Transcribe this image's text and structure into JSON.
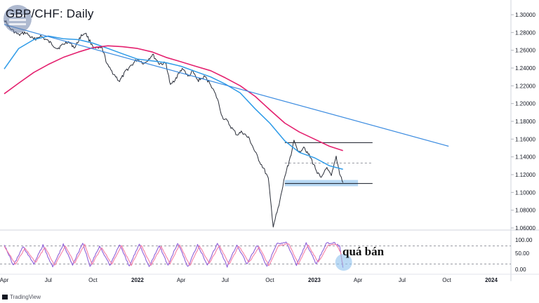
{
  "header": {
    "title": "GBP/CHF: Daily"
  },
  "annotation": {
    "oversold_label": "quá bán"
  },
  "brand": {
    "label": "TradingView"
  },
  "colors": {
    "price": "#2a2e39",
    "ma_fast": "#2e9be8",
    "ma_slow": "#e4216f",
    "trendline": "#3a8be0",
    "level": "#131722",
    "support_zone": "#9ecbf0",
    "stoch_k": "#8e5fd8",
    "stoch_d": "#f47fa7"
  },
  "chart_data": [
    {
      "type": "line",
      "title": "GBP/CHF: Daily",
      "x_ticks": [
        "Apr",
        "Jul",
        "Oct",
        "2022",
        "Apr",
        "Jul",
        "Oct",
        "2023",
        "Apr",
        "Jul",
        "Oct",
        "2024"
      ],
      "x_tick_dates": [
        "2021-04-01",
        "2021-07-01",
        "2021-10-01",
        "2022-01-01",
        "2022-04-01",
        "2022-07-01",
        "2022-10-01",
        "2023-01-01",
        "2023-04-01",
        "2023-07-01",
        "2023-10-01",
        "2024-01-01"
      ],
      "y_ticks": [
        "1.30000",
        "1.28000",
        "1.26000",
        "1.24000",
        "1.22000",
        "1.20000",
        "1.18000",
        "1.16000",
        "1.14000",
        "1.12000",
        "1.10000",
        "1.08000",
        "1.06000"
      ],
      "ylim": [
        1.06,
        1.3
      ],
      "grid": false,
      "series": [
        {
          "name": "",
          "style": "price",
          "dates": [
            "2021-04-01",
            "2021-04-12",
            "2021-05-01",
            "2021-05-15",
            "2021-06-01",
            "2021-06-15",
            "2021-07-01",
            "2021-07-20",
            "2021-08-10",
            "2021-08-25",
            "2021-09-05",
            "2021-09-15",
            "2021-09-25",
            "2021-10-05",
            "2021-10-20",
            "2021-11-01",
            "2021-11-15",
            "2021-11-25",
            "2021-12-10",
            "2022-01-01",
            "2022-01-15",
            "2022-02-01",
            "2022-02-15",
            "2022-03-01",
            "2022-03-10",
            "2022-03-25",
            "2022-04-05",
            "2022-04-15",
            "2022-04-25",
            "2022-05-05",
            "2022-05-20",
            "2022-06-01",
            "2022-06-15",
            "2022-06-25",
            "2022-07-05",
            "2022-07-15",
            "2022-07-25",
            "2022-08-05",
            "2022-08-20",
            "2022-09-01",
            "2022-09-10",
            "2022-09-20",
            "2022-09-28",
            "2022-10-08",
            "2022-10-20",
            "2022-11-01",
            "2022-11-10",
            "2022-11-20",
            "2022-12-01",
            "2022-12-10",
            "2022-12-25",
            "2023-01-05",
            "2023-01-15",
            "2023-01-25",
            "2023-02-05",
            "2023-02-15",
            "2023-02-22",
            "2023-03-01"
          ],
          "values": [
            1.295,
            1.285,
            1.277,
            1.28,
            1.272,
            1.276,
            1.27,
            1.262,
            1.27,
            1.263,
            1.275,
            1.28,
            1.27,
            1.262,
            1.262,
            1.242,
            1.232,
            1.225,
            1.238,
            1.25,
            1.245,
            1.255,
            1.245,
            1.245,
            1.22,
            1.232,
            1.24,
            1.23,
            1.236,
            1.226,
            1.23,
            1.222,
            1.205,
            1.185,
            1.18,
            1.172,
            1.165,
            1.168,
            1.16,
            1.145,
            1.135,
            1.125,
            1.115,
            1.062,
            1.085,
            1.118,
            1.135,
            1.157,
            1.145,
            1.152,
            1.138,
            1.125,
            1.115,
            1.128,
            1.118,
            1.14,
            1.122,
            1.111
          ]
        },
        {
          "name": "",
          "style": "ma_fast",
          "dates": [
            "2021-04-01",
            "2021-05-01",
            "2021-06-01",
            "2021-07-01",
            "2021-08-01",
            "2021-09-01",
            "2021-10-01",
            "2021-11-01",
            "2021-12-01",
            "2022-01-01",
            "2022-02-01",
            "2022-03-01",
            "2022-04-01",
            "2022-05-01",
            "2022-06-01",
            "2022-07-01",
            "2022-08-01",
            "2022-09-01",
            "2022-10-01",
            "2022-11-01",
            "2022-12-01",
            "2023-01-01",
            "2023-02-01",
            "2023-03-01"
          ],
          "values": [
            1.239,
            1.262,
            1.272,
            1.276,
            1.273,
            1.272,
            1.268,
            1.262,
            1.256,
            1.25,
            1.248,
            1.246,
            1.242,
            1.236,
            1.23,
            1.222,
            1.212,
            1.194,
            1.178,
            1.158,
            1.145,
            1.139,
            1.13,
            1.126
          ]
        },
        {
          "name": "",
          "style": "ma_slow",
          "dates": [
            "2021-04-01",
            "2021-05-01",
            "2021-06-01",
            "2021-07-01",
            "2021-08-01",
            "2021-09-01",
            "2021-10-01",
            "2021-11-01",
            "2021-12-01",
            "2022-01-01",
            "2022-02-01",
            "2022-03-01",
            "2022-04-01",
            "2022-05-01",
            "2022-06-01",
            "2022-07-01",
            "2022-08-01",
            "2022-09-01",
            "2022-10-01",
            "2022-11-01",
            "2022-12-01",
            "2023-01-01",
            "2023-02-01",
            "2023-03-01"
          ],
          "values": [
            1.211,
            1.223,
            1.235,
            1.244,
            1.252,
            1.258,
            1.263,
            1.265,
            1.264,
            1.262,
            1.258,
            1.252,
            1.247,
            1.242,
            1.237,
            1.229,
            1.22,
            1.208,
            1.193,
            1.178,
            1.168,
            1.16,
            1.152,
            1.147
          ]
        },
        {
          "name": "",
          "style": "trendline",
          "dates": [
            "2021-04-01",
            "2023-10-05"
          ],
          "values": [
            1.289,
            1.152
          ]
        }
      ],
      "levels": [
        {
          "value": 1.156,
          "from": "2022-11-01",
          "to": "2023-05-01",
          "style": "solid"
        },
        {
          "value": 1.133,
          "from": "2022-11-01",
          "to": "2023-05-01",
          "style": "dashed"
        },
        {
          "value": 1.11,
          "from": "2022-11-01",
          "to": "2023-05-01",
          "style": "solid"
        }
      ],
      "zone": {
        "from": "2022-11-01",
        "to": "2023-04-01",
        "low": 1.107,
        "high": 1.114
      }
    },
    {
      "type": "line",
      "y_ticks": [
        "100.00",
        "50.00",
        "0.00"
      ],
      "ylim": [
        0,
        100
      ],
      "overbought": 80,
      "oversold": 20,
      "series": [
        {
          "name": "",
          "style": "stoch_k",
          "dates": [
            "2021-04-01",
            "2021-04-20",
            "2021-05-10",
            "2021-06-01",
            "2021-06-20",
            "2021-07-10",
            "2021-08-01",
            "2021-08-20",
            "2021-09-10",
            "2021-09-25",
            "2021-10-15",
            "2021-11-05",
            "2021-11-25",
            "2021-12-15",
            "2022-01-05",
            "2022-01-25",
            "2022-02-15",
            "2022-03-05",
            "2022-03-25",
            "2022-04-15",
            "2022-05-05",
            "2022-05-25",
            "2022-06-15",
            "2022-07-05",
            "2022-07-25",
            "2022-08-15",
            "2022-09-05",
            "2022-09-25",
            "2022-10-15",
            "2022-11-05",
            "2022-11-25",
            "2022-12-15",
            "2023-01-05",
            "2023-01-25",
            "2023-02-10",
            "2023-02-22",
            "2023-03-01"
          ],
          "values": [
            85,
            15,
            78,
            20,
            82,
            10,
            85,
            18,
            90,
            12,
            80,
            15,
            85,
            12,
            88,
            10,
            82,
            15,
            90,
            10,
            85,
            18,
            88,
            12,
            84,
            20,
            82,
            10,
            86,
            92,
            15,
            90,
            20,
            88,
            90,
            80,
            8
          ]
        },
        {
          "name": "",
          "style": "stoch_d",
          "dates": [
            "2021-04-01",
            "2021-04-24",
            "2021-05-14",
            "2021-06-05",
            "2021-06-24",
            "2021-07-14",
            "2021-08-05",
            "2021-08-24",
            "2021-09-14",
            "2021-09-29",
            "2021-10-19",
            "2021-11-09",
            "2021-11-29",
            "2021-12-19",
            "2022-01-09",
            "2022-01-29",
            "2022-02-19",
            "2022-03-09",
            "2022-03-29",
            "2022-04-19",
            "2022-05-09",
            "2022-05-29",
            "2022-06-19",
            "2022-07-09",
            "2022-07-29",
            "2022-08-19",
            "2022-09-09",
            "2022-09-29",
            "2022-10-19",
            "2022-11-09",
            "2022-11-29",
            "2022-12-19",
            "2023-01-09",
            "2023-01-29",
            "2023-02-14",
            "2023-02-24",
            "2023-03-01"
          ],
          "values": [
            80,
            20,
            72,
            25,
            76,
            15,
            80,
            22,
            85,
            18,
            75,
            20,
            80,
            16,
            82,
            15,
            78,
            20,
            84,
            15,
            80,
            22,
            82,
            18,
            80,
            25,
            76,
            15,
            80,
            88,
            20,
            84,
            25,
            82,
            86,
            60,
            15
          ]
        }
      ]
    }
  ]
}
